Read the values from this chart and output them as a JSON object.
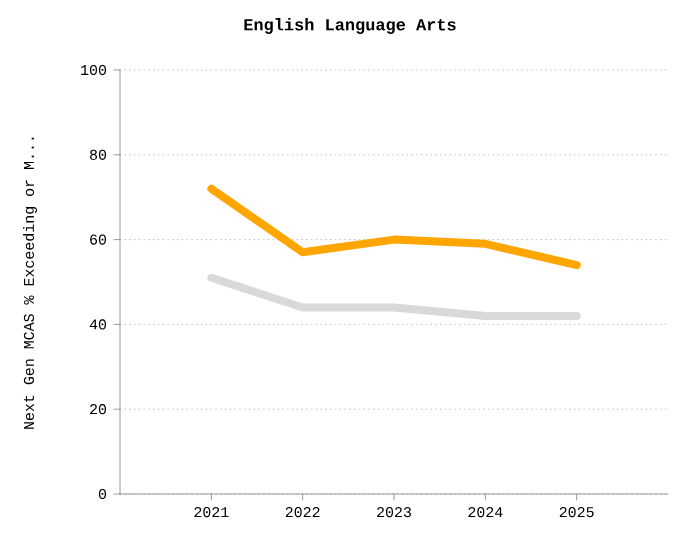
{
  "chart_data": {
    "type": "line",
    "title": "English Language Arts",
    "ylabel": "Next Gen MCAS % Exceeding or M...",
    "x": [
      2021,
      2022,
      2023,
      2024,
      2025
    ],
    "series": [
      {
        "color": "#ffa500",
        "values": [
          72,
          57,
          60,
          59,
          54
        ]
      },
      {
        "color": "#d9d9d9",
        "values": [
          51,
          44,
          44,
          42,
          42
        ]
      }
    ],
    "xlim": [
      2020,
      2026
    ],
    "xticks": [
      2021,
      2022,
      2023,
      2024,
      2025
    ],
    "ylim": [
      0,
      100
    ],
    "yticks": [
      0,
      20,
      40,
      60,
      80,
      100
    ],
    "grid": "y",
    "marker": "none",
    "line_style": "solid"
  }
}
